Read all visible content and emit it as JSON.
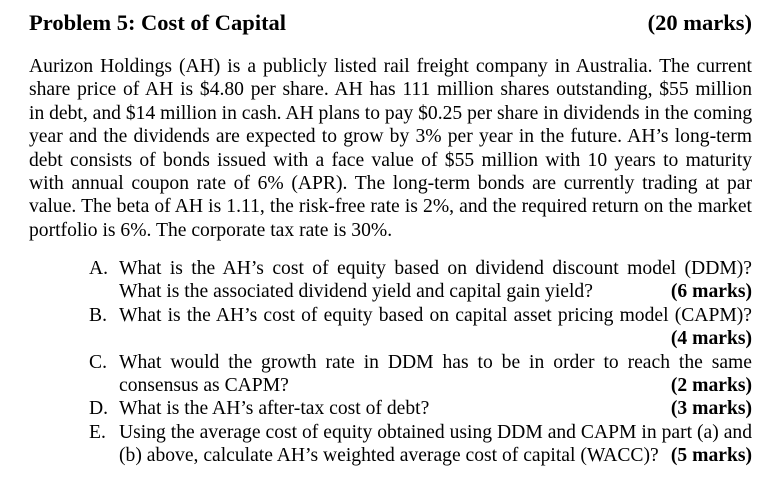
{
  "header": {
    "title": "Problem 5: Cost of Capital",
    "total_marks": "(20 marks)"
  },
  "intro": {
    "lines": [
      "Aurizon Holdings (AH) is a publicly listed rail freight company in Australia. The current",
      "share price of AH is $4.80 per share. AH has 111 million shares outstanding, $55 million",
      "in debt, and $14 million in cash. AH plans to pay $0.25 per share in dividends in the coming",
      "year and the dividends are expected to grow by 3% per year in the future. AH’s long-term",
      "debt consists of bonds issued with a face value of $55 million with 10 years to maturity",
      "with annual coupon rate of 6% (APR). The long-term bonds are currently trading at par",
      "value. The beta of AH is 1.11, the risk-free rate is 2%, and the required return on the market",
      "portfolio is 6%. The corporate tax rate is 30%."
    ]
  },
  "questions": [
    {
      "letter": "A.",
      "line1": "What is the AH’s cost of equity based on dividend discount model (DDM)?",
      "line2": "What is the associated dividend yield and capital gain yield?",
      "marks": "(6 marks)"
    },
    {
      "letter": "B.",
      "line1": "What is the AH’s cost of equity based on capital asset pricing model (CAPM)?",
      "marks": "(4 marks)"
    },
    {
      "letter": "C.",
      "line1": "What would the growth rate in DDM has to be in order to reach the same",
      "line2": "consensus as CAPM?",
      "marks": "(2 marks)"
    },
    {
      "letter": "D.",
      "line1": "What is the AH’s after-tax cost of debt?",
      "marks": "(3 marks)"
    },
    {
      "letter": "E.",
      "line1": "Using the average cost of equity obtained using DDM and CAPM in part (a) and",
      "line2": "(b) above, calculate AH’s weighted average cost of capital (WACC)?",
      "marks": "(5 marks)"
    }
  ]
}
